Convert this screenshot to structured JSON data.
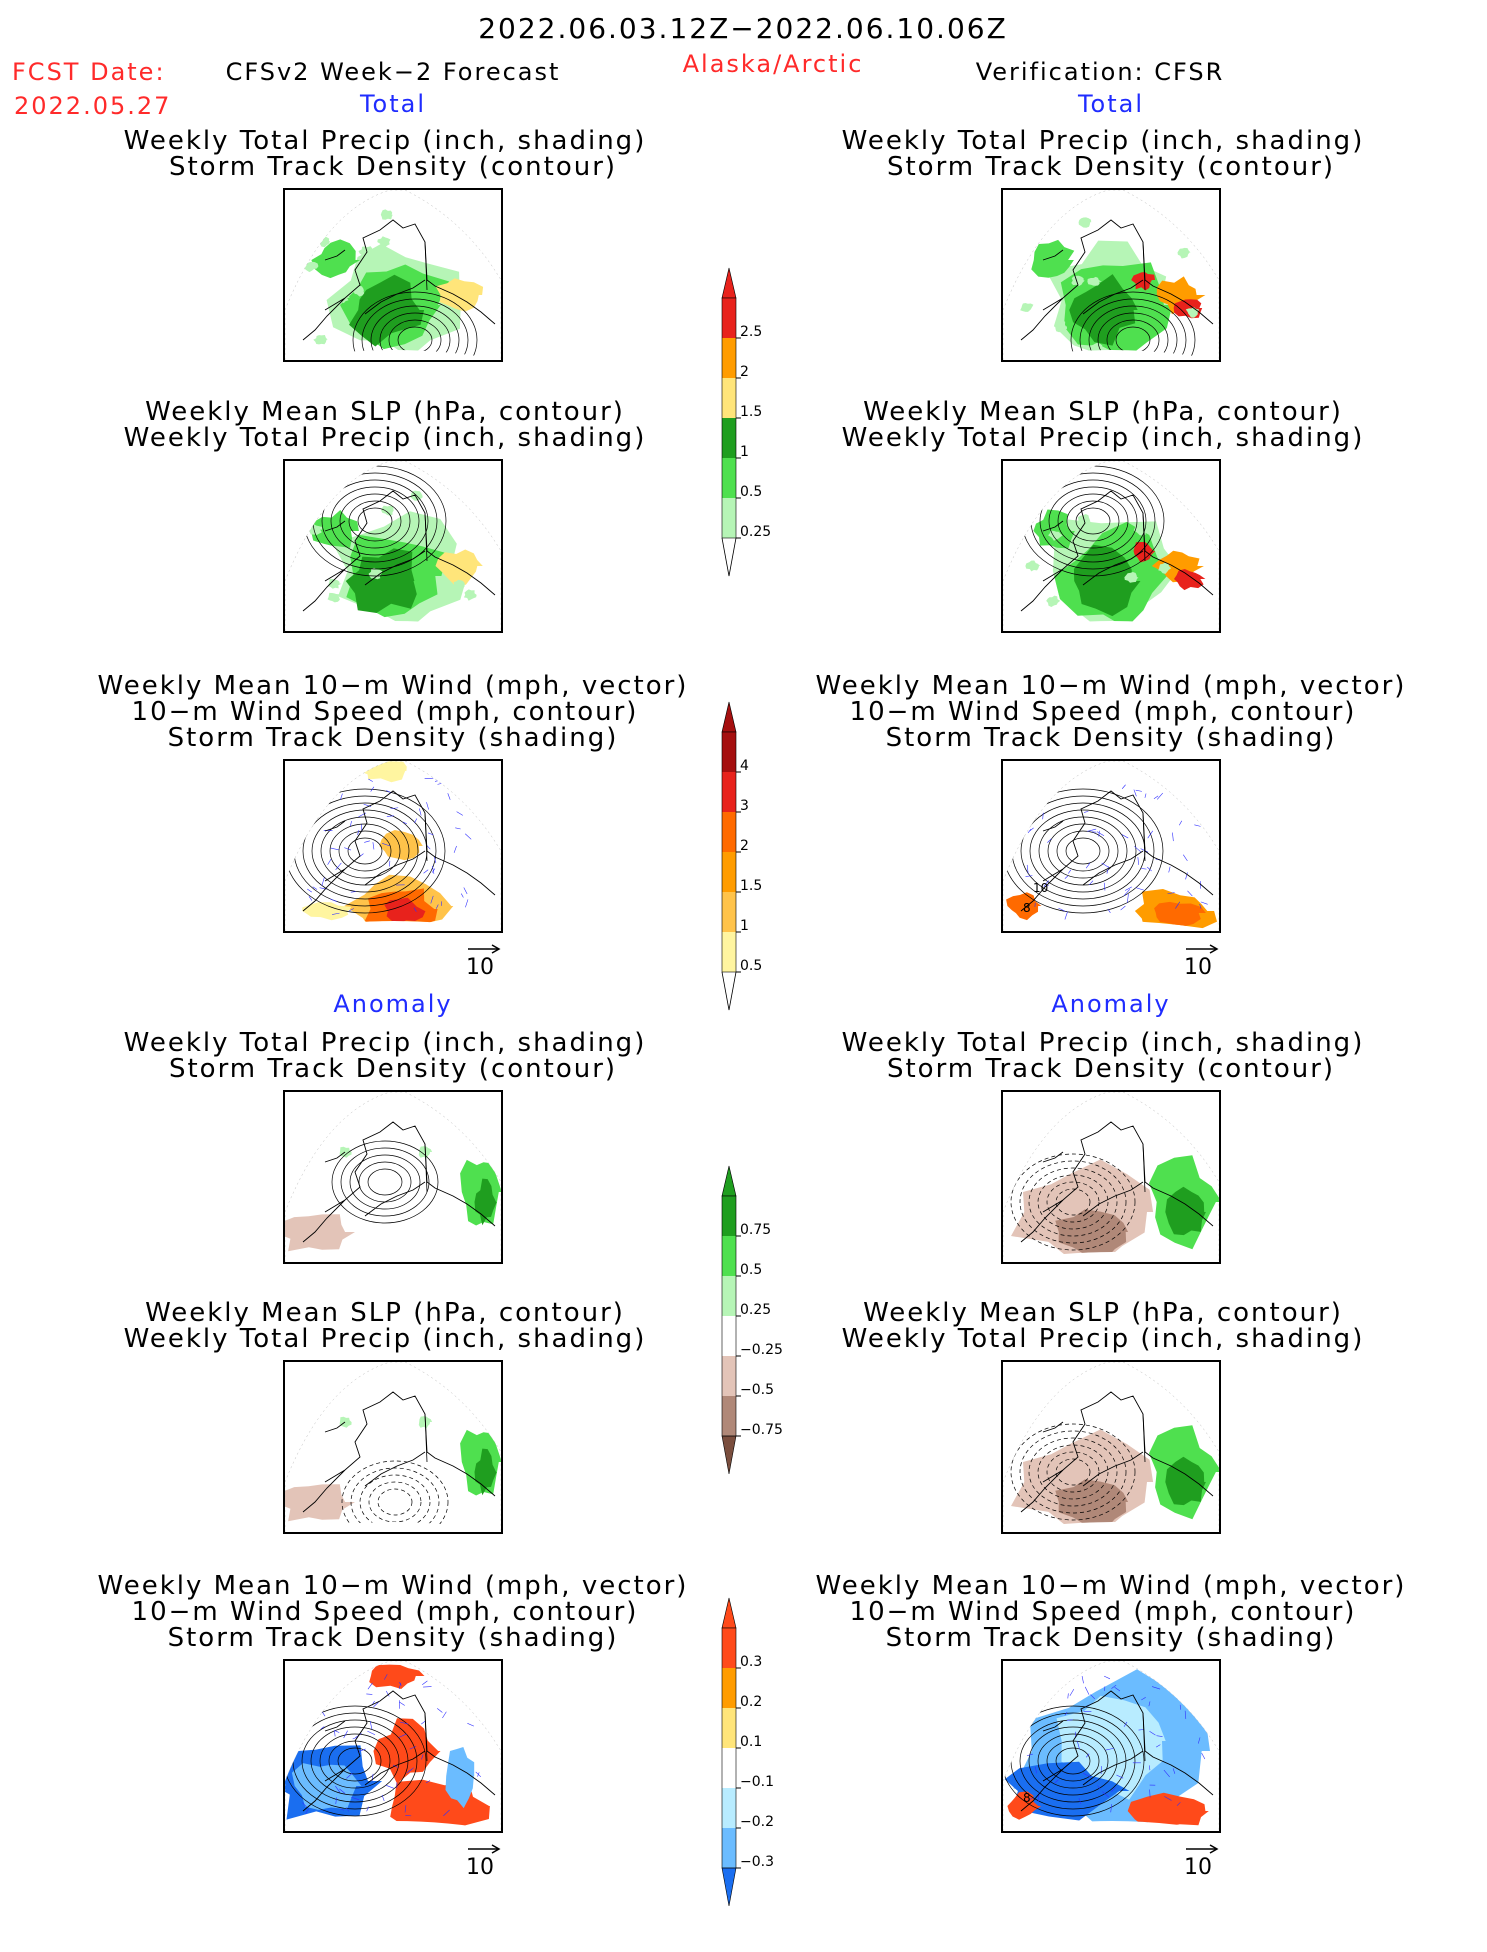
{
  "header": {
    "date_range": "2022.06.03.12Z−2022.06.10.06Z",
    "fcst_label": "FCST Date:",
    "fcst_date": "2022.05.27",
    "model": "CFSv2 Week−2 Forecast",
    "region": "Alaska/Arctic",
    "verification": "Verification: CFSR"
  },
  "sections": {
    "total": "Total",
    "anomaly": "Anomaly"
  },
  "panel_titles": {
    "precip_storm": [
      "Weekly Total Precip (inch, shading)",
      "Storm Track Density (contour)"
    ],
    "slp_precip": [
      "Weekly Mean SLP (hPa, contour)",
      "Weekly Total Precip (inch, shading)"
    ],
    "wind_storm": [
      "Weekly Mean 10−m Wind (mph, vector)",
      "10−m Wind Speed (mph, contour)",
      "Storm Track Density (shading)"
    ]
  },
  "vector_ref": "10",
  "map_labels": {
    "wind_total_cfsr_1": "10",
    "wind_total_cfsr_2": "8",
    "wind_anom_cfsr": "8"
  },
  "colorbars": {
    "precip_total": {
      "labels": [
        "2.5",
        "2",
        "1.5",
        "1",
        "0.5",
        "0.25"
      ],
      "colors": [
        "#e8221c",
        "#ff9c00",
        "#ffe57a",
        "#1f9e1f",
        "#4fe04f",
        "#b6f5b6"
      ]
    },
    "storm_total": {
      "labels": [
        "4",
        "3",
        "2",
        "1.5",
        "1",
        "0.5"
      ],
      "colors": [
        "#a50f0f",
        "#e8221c",
        "#ff6a00",
        "#ff9c00",
        "#ffc34a",
        "#fff5a0"
      ]
    },
    "precip_anom": {
      "labels": [
        "0.75",
        "0.5",
        "0.25",
        "−0.25",
        "−0.5",
        "−0.75"
      ],
      "colors": [
        "#1f9e1f",
        "#4fe04f",
        "#b6f5b6",
        "#ffffff",
        "#e3c4b8",
        "#b08878",
        "#7a4e3e"
      ]
    },
    "storm_anom": {
      "labels": [
        "0.3",
        "0.2",
        "0.1",
        "−0.1",
        "−0.2",
        "−0.3"
      ],
      "colors": [
        "#ff4a1a",
        "#ff9c00",
        "#ffe57a",
        "#ffffff",
        "#b8ecff",
        "#6bbcff",
        "#1a6ef0"
      ]
    }
  }
}
